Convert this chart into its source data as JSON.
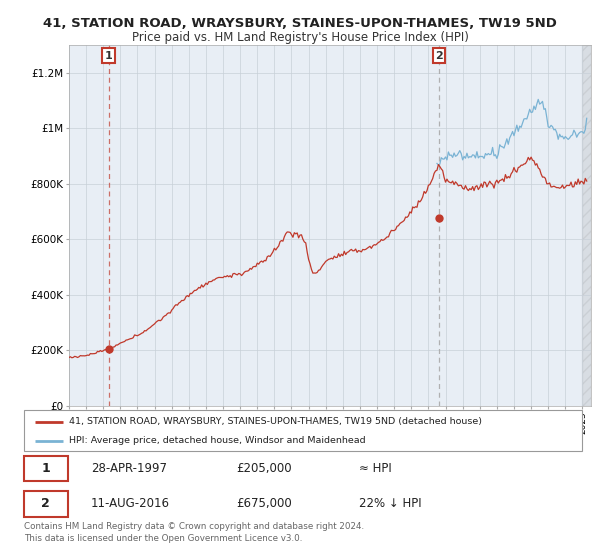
{
  "title": "41, STATION ROAD, WRAYSBURY, STAINES-UPON-THAMES, TW19 5ND",
  "subtitle": "Price paid vs. HM Land Registry's House Price Index (HPI)",
  "legend_line1": "41, STATION ROAD, WRAYSBURY, STAINES-UPON-THAMES, TW19 5ND (detached house)",
  "legend_line2": "HPI: Average price, detached house, Windsor and Maidenhead",
  "annotation1_date": "28-APR-1997",
  "annotation1_price": "£205,000",
  "annotation1_hpi": "≈ HPI",
  "annotation2_date": "11-AUG-2016",
  "annotation2_price": "£675,000",
  "annotation2_hpi": "22% ↓ HPI",
  "footer1": "Contains HM Land Registry data © Crown copyright and database right 2024.",
  "footer2": "This data is licensed under the Open Government Licence v3.0.",
  "sale1_year": 1997.32,
  "sale1_value": 205000,
  "sale2_year": 2016.62,
  "sale2_value": 675000,
  "hpi_color": "#7ab3d4",
  "property_color": "#c0392b",
  "bg_color": "#e8eef5",
  "grid_color": "#c8d0d8",
  "ylim": [
    0,
    1300000
  ],
  "xlim_start": 1995.0,
  "xlim_end": 2025.5
}
